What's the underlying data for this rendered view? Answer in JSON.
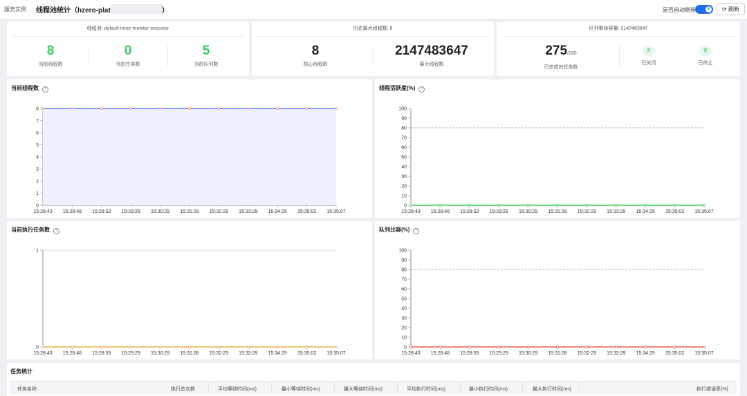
{
  "header": {
    "breadcrumb": "服务实例",
    "title_prefix": "线程池统计（hzero-platform",
    "title_suffix": "）",
    "auto_refresh_label": "是否自动刷新",
    "toggle_text": "是",
    "refresh_label": "刷新"
  },
  "stats": {
    "pool": {
      "head": "线程池: default-inner-monitor-executor",
      "items": [
        {
          "value": "8",
          "label": "当前线程数"
        },
        {
          "value": "0",
          "label": "当前任务数"
        },
        {
          "value": "5",
          "label": "当前队列数"
        }
      ]
    },
    "history": {
      "head": "历史最大线程数: 8",
      "items": [
        {
          "value": "8",
          "label": "核心线程数"
        },
        {
          "value": "2147483647",
          "label": "最大线程数"
        }
      ]
    },
    "queue": {
      "head": "队列剩余容量: 2147483647",
      "completed_value": "275",
      "completed_total": "/280",
      "completed_label": "已完成的任务数",
      "shutdown_tag": "否",
      "shutdown_label": "已关闭",
      "terminated_tag": "否",
      "terminated_label": "已终止"
    }
  },
  "chart_titles": {
    "c1": "当前线程数",
    "c2": "线程活跃度(%)",
    "c3": "当前执行任务数",
    "c4": "队列比容(%)"
  },
  "chart_data": [
    {
      "type": "area",
      "title": "当前线程数",
      "x": [
        "15:28:43",
        "15:28:48",
        "15:28:53",
        "15:29:29",
        "15:30:29",
        "15:31:28",
        "15:32:29",
        "15:33:29",
        "15:34:29",
        "15:35:02",
        "15:35:07"
      ],
      "series": [
        {
          "values": [
            8,
            8,
            8,
            8,
            8,
            8,
            8,
            8,
            8,
            8,
            8
          ]
        }
      ],
      "yticks": [
        0,
        1,
        2,
        3,
        4,
        5,
        6,
        7,
        8
      ],
      "ylim": [
        0,
        8
      ],
      "colors": {
        "line": "#5b7cf5",
        "fill": "#eef1fd",
        "points": "#f0a070"
      }
    },
    {
      "type": "line",
      "title": "线程活跃度(%)",
      "x": [
        "15:28:43",
        "15:28:48",
        "15:28:53",
        "15:29:29",
        "15:30:29",
        "15:31:28",
        "15:32:29",
        "15:33:29",
        "15:34:29",
        "15:35:02",
        "15:35:07"
      ],
      "series": [
        {
          "values": [
            0,
            0,
            0,
            0,
            0,
            0,
            0,
            0,
            0,
            0,
            0
          ]
        }
      ],
      "yticks": [
        0,
        10,
        20,
        30,
        40,
        50,
        60,
        70,
        80,
        90,
        100
      ],
      "ylim": [
        0,
        100
      ],
      "reference_line": 80,
      "colors": {
        "line": "#3fc862",
        "points": "#3fc862"
      }
    },
    {
      "type": "line",
      "title": "当前执行任务数",
      "x": [
        "15:28:43",
        "15:28:48",
        "15:28:53",
        "15:29:29",
        "15:30:29",
        "15:31:28",
        "15:32:29",
        "15:33:29",
        "15:34:29",
        "15:35:02",
        "15:35:07"
      ],
      "series": [
        {
          "values": [
            0,
            0,
            0,
            0,
            0,
            0,
            0,
            0,
            0,
            0,
            0
          ]
        }
      ],
      "yticks": [
        0,
        1
      ],
      "ylim": [
        0,
        1
      ],
      "colors": {
        "line": "#e8b04a",
        "points": "#f0a070"
      }
    },
    {
      "type": "line",
      "title": "队列比容(%)",
      "x": [
        "15:28:43",
        "15:28:48",
        "15:28:53",
        "15:29:29",
        "15:30:29",
        "15:31:28",
        "15:32:29",
        "15:33:29",
        "15:34:29",
        "15:35:02",
        "15:35:07"
      ],
      "series": [
        {
          "values": [
            0,
            0,
            0,
            0,
            0,
            0,
            0,
            0,
            0,
            0,
            0
          ]
        }
      ],
      "yticks": [
        0,
        10,
        20,
        30,
        40,
        50,
        60,
        70,
        80,
        90,
        100
      ],
      "ylim": [
        0,
        100
      ],
      "reference_line": 80,
      "colors": {
        "line": "#ef5a5a",
        "points": "#ef5a5a"
      }
    }
  ],
  "task_table": {
    "title": "任务统计",
    "columns": [
      "任务名称",
      "执行总次数",
      "平均等待时间(ms)",
      "最小等待时间(ms)",
      "最大等待时间(ms)",
      "平均执行时间(ms)",
      "最小执行时间(ms)",
      "最大执行时间(ms)",
      "执行错误率(%)"
    ]
  }
}
